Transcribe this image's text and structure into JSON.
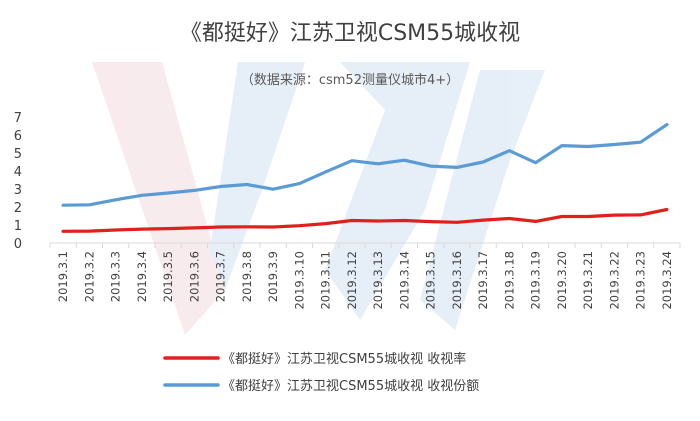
{
  "chart_data": {
    "type": "line",
    "title": "《都挺好》江苏卫视CSM55城收视",
    "subtitle": "（数据来源：csm52测量仪城市4+）",
    "xlabel": "",
    "ylabel": "",
    "ylim": [
      0,
      7
    ],
    "yticks": [
      "0",
      "1",
      "2",
      "3",
      "4",
      "5",
      "6",
      "7"
    ],
    "grid": false,
    "legend_position": "bottom",
    "categories": [
      "2019.3.1",
      "2019.3.2",
      "2019.3.3",
      "2019.3.4",
      "2019.3.5",
      "2019.3.6",
      "2019.3.7",
      "2019.3.8",
      "2019.3.9",
      "2019.3.10",
      "2019.3.11",
      "2019.3.12",
      "2019.3.13",
      "2019.3.14",
      "2019.3.15",
      "2019.3.16",
      "2019.3.17",
      "2019.3.18",
      "2019.3.19",
      "2019.3.20",
      "2019.3.21",
      "2019.3.22",
      "2019.3.23",
      "2019.3.24"
    ],
    "series": [
      {
        "name": "《都挺好》江苏卫视CSM55城收视 收视率",
        "color": "#e0201b",
        "values": [
          0.65,
          0.66,
          0.72,
          0.77,
          0.8,
          0.84,
          0.89,
          0.9,
          0.89,
          0.96,
          1.08,
          1.25,
          1.22,
          1.25,
          1.19,
          1.15,
          1.27,
          1.36,
          1.2,
          1.47,
          1.47,
          1.55,
          1.56,
          1.86
        ]
      },
      {
        "name": "《都挺好》江苏卫视CSM55城收视 收视份额",
        "color": "#5b9bd5",
        "values": [
          2.1,
          2.12,
          2.4,
          2.65,
          2.78,
          2.92,
          3.14,
          3.25,
          2.99,
          3.3,
          3.95,
          4.57,
          4.4,
          4.6,
          4.27,
          4.2,
          4.5,
          5.13,
          4.46,
          5.41,
          5.36,
          5.47,
          5.6,
          6.58
        ]
      }
    ]
  },
  "watermark_colors": [
    "#e8b8c0",
    "#a8c4e8"
  ]
}
